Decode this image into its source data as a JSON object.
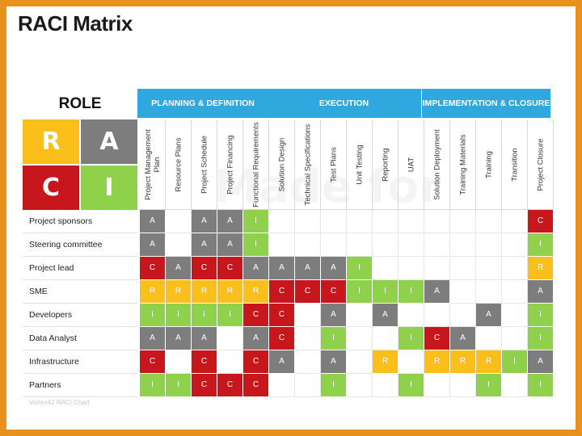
{
  "title": "RACI Matrix",
  "role_label": "ROLE",
  "legend": [
    {
      "letter": "R",
      "color": "#fbbf1b"
    },
    {
      "letter": "A",
      "color": "#7d7d7d"
    },
    {
      "letter": "C",
      "color": "#c8161d"
    },
    {
      "letter": "I",
      "color": "#8fd14b"
    }
  ],
  "watermark": "Made for PowerPoint",
  "phases": [
    {
      "label": "PLANNING & DEFINITION",
      "span": 5
    },
    {
      "label": "EXECUTION",
      "span": 6
    },
    {
      "label": "IMPLEMENTATION & CLOSURE",
      "span": 5
    }
  ],
  "columns": [
    "Project Management Plan",
    "Resource Plans",
    "Project Schedule",
    "Project Financing",
    "Functional Requirements",
    "Solution Design",
    "Technical Specifications",
    "Test Plans",
    "Unit Testing",
    "Reporting",
    "UAT",
    "Solution Deployment",
    "Training Materials",
    "Training",
    "Transition",
    "Project Closure"
  ],
  "rows": [
    {
      "role": "Project sponsors",
      "cells": [
        "A",
        "",
        "A",
        "A",
        "I",
        "",
        "",
        "",
        "",
        "",
        "",
        "",
        "",
        "",
        "",
        "C"
      ]
    },
    {
      "role": "Steering committee",
      "cells": [
        "A",
        "",
        "A",
        "A",
        "I",
        "",
        "",
        "",
        "",
        "",
        "",
        "",
        "",
        "",
        "",
        "I"
      ]
    },
    {
      "role": "Project lead",
      "cells": [
        "C",
        "A",
        "C",
        "C",
        "A",
        "A",
        "A",
        "A",
        "I",
        "",
        "",
        "",
        "",
        "",
        "",
        "R"
      ]
    },
    {
      "role": "SME",
      "cells": [
        "R",
        "R",
        "R",
        "R",
        "R",
        "C",
        "C",
        "C",
        "I",
        "I",
        "I",
        "A",
        "",
        "",
        "",
        "A"
      ]
    },
    {
      "role": "Developers",
      "cells": [
        "I",
        "I",
        "I",
        "I",
        "C",
        "C",
        "",
        "A",
        "",
        "A",
        "",
        "",
        "",
        "A",
        "",
        "I"
      ]
    },
    {
      "role": "Data Analyst",
      "cells": [
        "A",
        "A",
        "A",
        "",
        "A",
        "C",
        "",
        "I",
        "",
        "",
        "I",
        "C",
        "A",
        "",
        "",
        "I"
      ]
    },
    {
      "role": "Infrastructure",
      "cells": [
        "C",
        "",
        "C",
        "",
        "C",
        "A",
        "",
        "A",
        "",
        "R",
        "",
        "R",
        "R",
        "R",
        "I",
        "A"
      ]
    },
    {
      "role": "Partners",
      "cells": [
        "I",
        "I",
        "C",
        "C",
        "C",
        "",
        "",
        "I",
        "",
        "",
        "I",
        "",
        "",
        "I",
        "",
        "I"
      ]
    }
  ],
  "footer": "Vertex42 RACI Chart"
}
